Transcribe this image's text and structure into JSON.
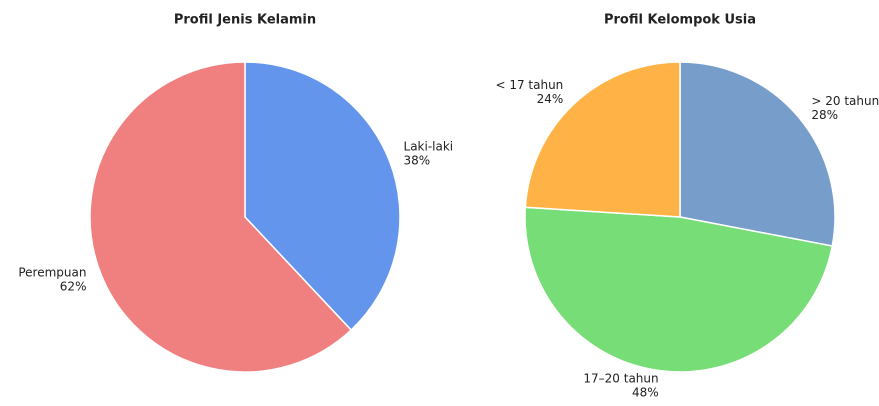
{
  "chart_data": [
    {
      "type": "pie",
      "title": "Profil Jenis Kelamin",
      "categories": [
        "Laki-laki",
        "Perempuan"
      ],
      "values": [
        38,
        62
      ],
      "value_labels": [
        "38%",
        "62%"
      ],
      "colors": [
        "#6495ed",
        "#f08080"
      ]
    },
    {
      "type": "pie",
      "title": "Profil Kelompok Usia",
      "categories": [
        "> 20 tahun",
        "17–20 tahun",
        "< 17 tahun"
      ],
      "values": [
        28,
        48,
        24
      ],
      "value_labels": [
        "28%",
        "48%",
        "24%"
      ],
      "colors": [
        "#779ecb",
        "#77dd77",
        "#ffb347"
      ]
    }
  ]
}
